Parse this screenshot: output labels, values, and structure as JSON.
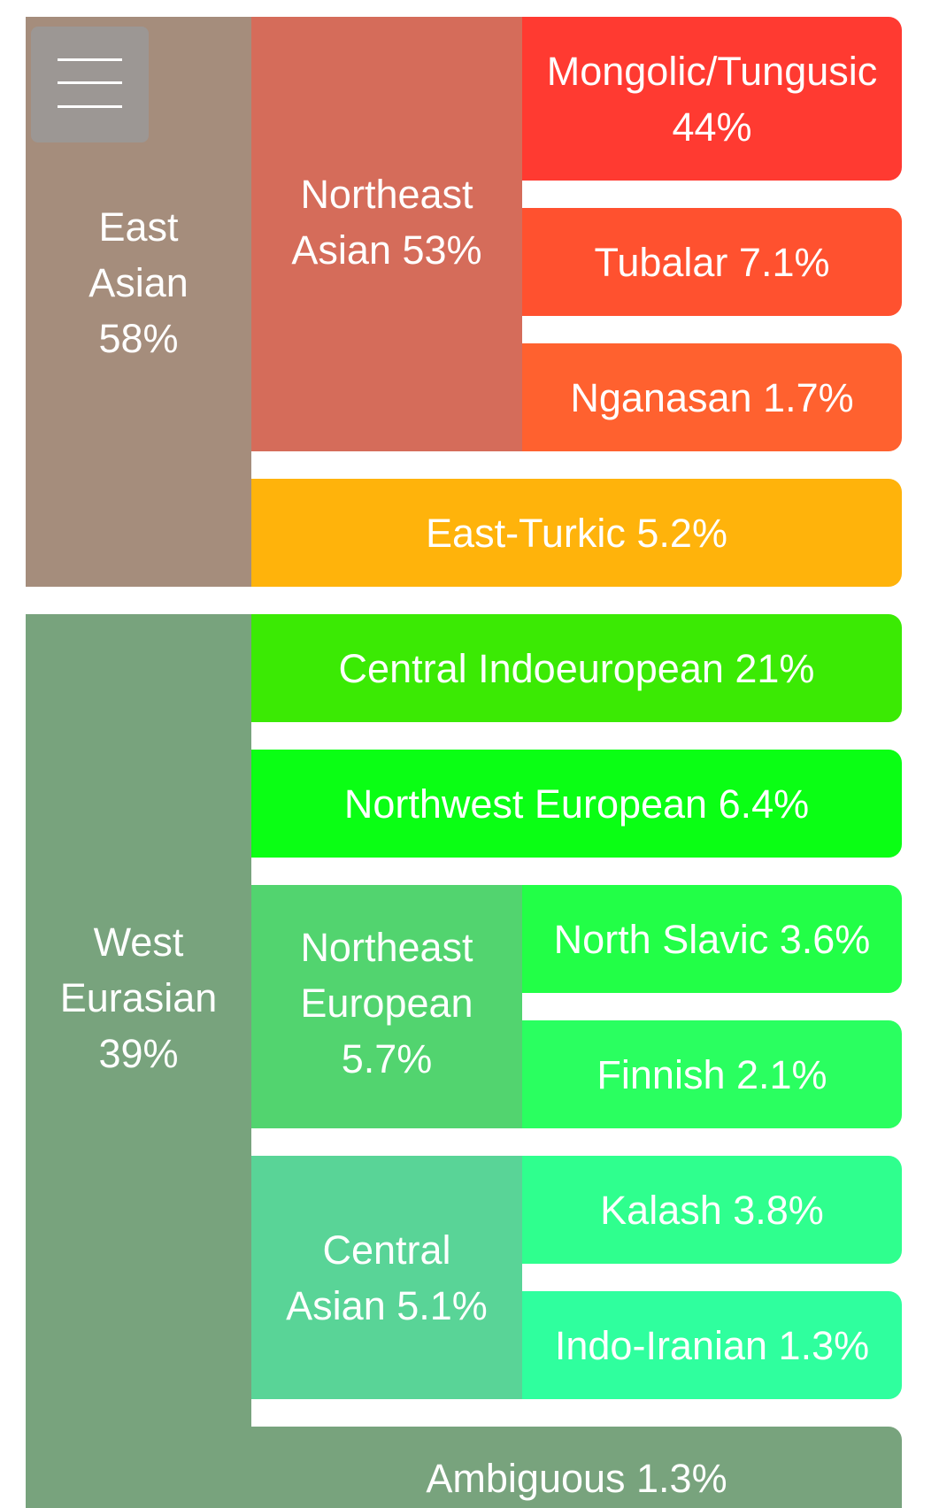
{
  "menu": {
    "icon": "hamburger-icon"
  },
  "colors": {
    "east_asian": "#a58d7c",
    "northeast_asian": "#d56c5a",
    "mongolic_tungusic": "#ff3a31",
    "tubalar": "#ff512f",
    "nganasan": "#ff612f",
    "east_turkic": "#ffb30b",
    "west_eurasian": "#78a37d",
    "central_indoeuropean": "#3bea04",
    "northwest_european": "#0aff14",
    "northeast_european": "#52d46f",
    "north_slavic": "#22ff47",
    "finnish": "#2aff60",
    "central_asian": "#59d497",
    "kalash": "#2fff8e",
    "indo_iranian": "#2fff9e",
    "ambiguous": "#78a37d"
  },
  "east_asian": {
    "label": "East\nAsian\n58%",
    "northeast_asian": {
      "label": "Northeast\nAsian 53%",
      "mongolic_tungusic": "Mongolic/Tungusic\n44%",
      "tubalar": "Tubalar 7.1%",
      "nganasan": "Nganasan 1.7%"
    },
    "east_turkic": "East-Turkic 5.2%"
  },
  "west_eurasian": {
    "label": "West\nEurasian\n39%",
    "central_indoeuropean": "Central Indoeuropean 21%",
    "northwest_european": "Northwest European 6.4%",
    "northeast_european": {
      "label": "Northeast\nEuropean\n5.7%",
      "north_slavic": "North Slavic 3.6%",
      "finnish": "Finnish 2.1%"
    },
    "central_asian": {
      "label": "Central\nAsian 5.1%",
      "kalash": "Kalash 3.8%",
      "indo_iranian": "Indo-Iranian 1.3%"
    },
    "ambiguous": "Ambiguous 1.3%"
  }
}
